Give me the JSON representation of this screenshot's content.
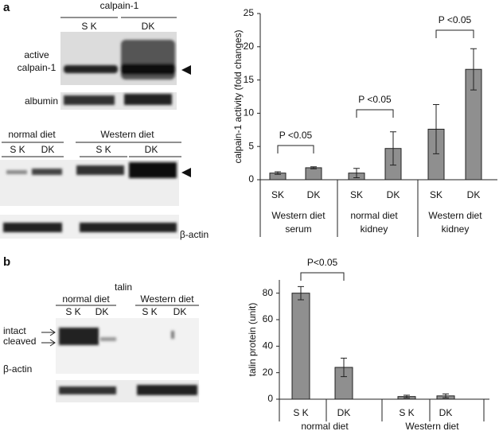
{
  "figure": {
    "panel_a": {
      "letter": "a",
      "blot_title": "calpain-1",
      "lanes_top": [
        "S K",
        "DK"
      ],
      "band_label": [
        "active",
        "calpain-1"
      ],
      "loading_top": "albumin",
      "diets": [
        "normal diet",
        "Western diet"
      ],
      "lanes_bottom": [
        "S K",
        "DK",
        "S K",
        "DK"
      ],
      "loading_bottom": "β-actin"
    },
    "panel_b": {
      "letter": "b",
      "blot_title": "talin",
      "diets": [
        "normal diet",
        "Western diet"
      ],
      "lanes": [
        "S K",
        "DK",
        "S K",
        "DK"
      ],
      "band_labels": [
        "intact",
        "cleaved"
      ],
      "loading": "β-actin"
    }
  },
  "chart_data": [
    {
      "type": "bar",
      "y_label": "calpain-1 activity (fold changes)",
      "categories": [
        "SK",
        "DK",
        "SK",
        "DK",
        "SK",
        "DK"
      ],
      "groups": [
        [
          "Western diet",
          "serum"
        ],
        [
          "normal diet",
          "kidney"
        ],
        [
          "Western diet",
          "kidney"
        ]
      ],
      "values": [
        1.0,
        1.8,
        1.0,
        4.7,
        7.6,
        16.6
      ],
      "errors": [
        0.2,
        0.15,
        0.7,
        2.5,
        3.7,
        3.1
      ],
      "color": "#8f8f8f",
      "ylim": [
        0,
        25
      ],
      "yticks": [
        0,
        5,
        10,
        15,
        20,
        25
      ],
      "annotations": [
        "P <0.05",
        "P <0.05",
        "P <0.05"
      ]
    },
    {
      "type": "bar",
      "y_label": "talin protein (unit)",
      "categories": [
        "S K",
        "DK",
        "S K",
        "DK"
      ],
      "groups": [
        [
          "normal diet"
        ],
        [
          "Western diet"
        ]
      ],
      "values": [
        80,
        24,
        2,
        2.5
      ],
      "errors": [
        5,
        7,
        1,
        1.5
      ],
      "color": "#8f8f8f",
      "ylim": [
        0,
        90
      ],
      "yticks": [
        0,
        20,
        40,
        60,
        80
      ],
      "annotations": [
        "P<0.05"
      ]
    }
  ]
}
